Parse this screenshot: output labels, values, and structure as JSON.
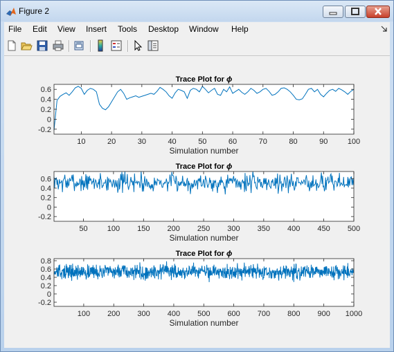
{
  "window": {
    "title": "Figure 2"
  },
  "menu": [
    "File",
    "Edit",
    "View",
    "Insert",
    "Tools",
    "Desktop",
    "Window",
    "Help"
  ],
  "toolbar": [
    "new-figure-icon",
    "open-file-icon",
    "save-icon",
    "print-icon",
    "print-preview-icon",
    "colorbar-icon",
    "legend-icon",
    "pointer-icon",
    "property-editor-icon"
  ],
  "colors": {
    "trace": "#0072bd"
  },
  "chart_data": [
    {
      "type": "line",
      "title": "Trace Plot for",
      "title_symbol": "ϕ",
      "xlabel": "Simulation number",
      "xlim": [
        1,
        100
      ],
      "ylim": [
        -0.3,
        0.7
      ],
      "xticks": [
        "10",
        "20",
        "30",
        "40",
        "50",
        "60",
        "70",
        "80",
        "90",
        "100"
      ],
      "yticks": [
        "0.6",
        "0.4",
        "0.2",
        "0",
        "-0.2"
      ],
      "series": [
        {
          "x_start": 1,
          "values": [
            -0.22,
            0.38,
            0.46,
            0.5,
            0.53,
            0.48,
            0.55,
            0.63,
            0.66,
            0.62,
            0.5,
            0.58,
            0.62,
            0.6,
            0.55,
            0.3,
            0.22,
            0.19,
            0.25,
            0.35,
            0.45,
            0.55,
            0.6,
            0.52,
            0.4,
            0.43,
            0.45,
            0.47,
            0.44,
            0.46,
            0.48,
            0.5,
            0.52,
            0.5,
            0.56,
            0.64,
            0.6,
            0.55,
            0.47,
            0.42,
            0.53,
            0.6,
            0.58,
            0.55,
            0.42,
            0.58,
            0.62,
            0.6,
            0.55,
            0.66,
            0.6,
            0.53,
            0.58,
            0.62,
            0.5,
            0.48,
            0.6,
            0.55,
            0.65,
            0.52,
            0.56,
            0.6,
            0.54,
            0.5,
            0.55,
            0.62,
            0.58,
            0.52,
            0.55,
            0.6,
            0.62,
            0.56,
            0.48,
            0.5,
            0.55,
            0.62,
            0.63,
            0.6,
            0.55,
            0.48,
            0.4,
            0.39,
            0.41,
            0.5,
            0.6,
            0.62,
            0.55,
            0.6,
            0.5,
            0.45,
            0.52,
            0.58,
            0.6,
            0.56,
            0.62,
            0.59,
            0.55,
            0.5,
            0.56,
            0.6
          ]
        }
      ]
    },
    {
      "type": "line",
      "title": "Trace Plot for",
      "title_symbol": "ϕ",
      "xlabel": "Simulation number",
      "xlim": [
        1,
        500
      ],
      "ylim": [
        -0.3,
        0.75
      ],
      "xticks": [
        "50",
        "100",
        "150",
        "200",
        "250",
        "300",
        "350",
        "400",
        "450",
        "500"
      ],
      "yticks": [
        "0.6",
        "0.4",
        "0.2",
        "0",
        "-0.2"
      ],
      "series": [
        {
          "x_start": 1,
          "generated": "noisy",
          "n": 500,
          "mean": 0.52,
          "sd": 0.1,
          "min": 0.18,
          "max": 0.75,
          "seed": 7
        }
      ]
    },
    {
      "type": "line",
      "title": "Trace Plot for",
      "title_symbol": "ϕ",
      "xlabel": "Simulation number",
      "xlim": [
        1,
        1000
      ],
      "ylim": [
        -0.3,
        0.85
      ],
      "xticks": [
        "100",
        "200",
        "300",
        "400",
        "500",
        "600",
        "700",
        "800",
        "900",
        "1000"
      ],
      "yticks": [
        "0.8",
        "0.6",
        "0.4",
        "0.2",
        "0",
        "-0.2"
      ],
      "series": [
        {
          "x_start": 1,
          "generated": "noisy",
          "n": 1000,
          "mean": 0.53,
          "sd": 0.09,
          "min": 0.2,
          "max": 0.8,
          "seed": 13
        }
      ]
    }
  ]
}
